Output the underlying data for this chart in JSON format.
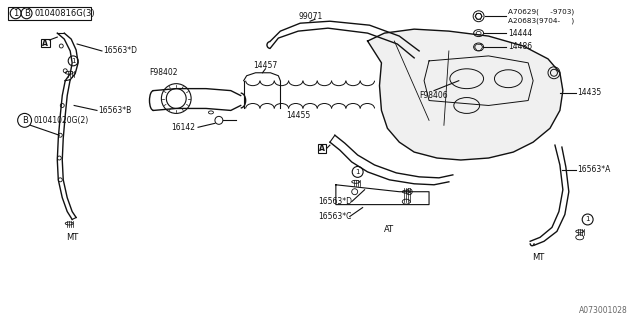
{
  "bg_color": "#ffffff",
  "line_color": "#111111",
  "fig_width": 6.4,
  "fig_height": 3.2,
  "dpi": 100,
  "labels": {
    "header_text": "01040816G(3)",
    "label_16563D_left": "16563*D",
    "label_16563B": "16563*B",
    "label_F98402": "F98402",
    "label_16142": "16142",
    "label_99071": "99071",
    "label_14457": "14457",
    "label_14455": "14455",
    "label_14435": "14435",
    "label_14444": "14444",
    "label_14486": "14486",
    "label_A70629": "A70629(     -9703)",
    "label_A20683": "A20683(9704-     )",
    "label_F98406": "F98406",
    "label_16563D_center": "16563*D",
    "label_16563C": "16563*C",
    "label_16563A": "16563*A",
    "label_MT_left": "MT",
    "label_AT": "AT",
    "label_MT_right": "MT",
    "bottom_left_part": "01041020G(2)",
    "ref_code": "A073001028"
  }
}
